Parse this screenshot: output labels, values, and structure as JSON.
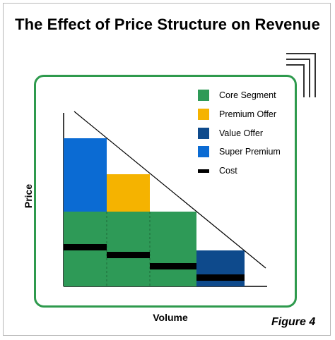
{
  "title": "The Effect of Price Structure on Revenue",
  "axes": {
    "y_label": "Price",
    "x_label": "Volume"
  },
  "figure_label": "Figure 4",
  "colors": {
    "core": "#2e9a57",
    "premium": "#f5b300",
    "value": "#0e4a8c",
    "super": "#0b6bd3",
    "cost": "#000000",
    "panel_border": "#2e9a4d"
  },
  "legend": [
    {
      "key": "core",
      "label": "Core Segment",
      "color": "#2e9a57"
    },
    {
      "key": "premium",
      "label": "Premium Offer",
      "color": "#f5b300"
    },
    {
      "key": "value",
      "label": "Value Offer",
      "color": "#0e4a8c"
    },
    {
      "key": "super",
      "label": "Super Premium",
      "color": "#0b6bd3"
    },
    {
      "key": "cost",
      "label": "Cost",
      "color": "#000000"
    }
  ]
}
